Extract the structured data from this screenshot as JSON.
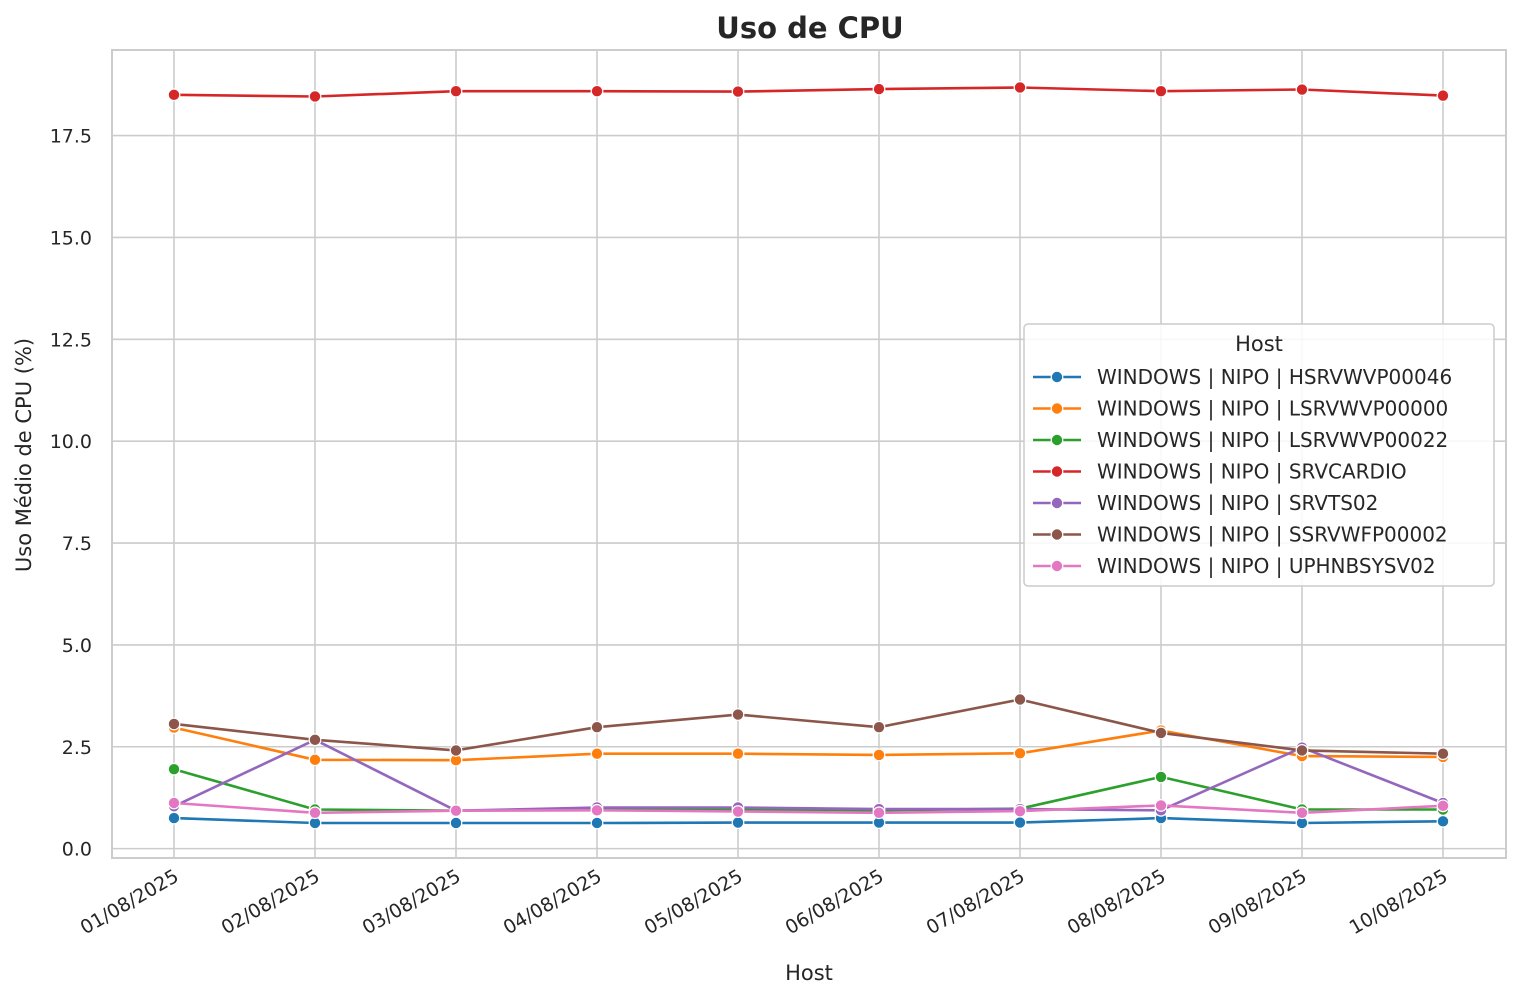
{
  "chart_data": {
    "type": "line",
    "title": "Uso de CPU",
    "xlabel": "Host",
    "ylabel": "Uso Médio de CPU (%)",
    "categories": [
      "01/08/2025",
      "02/08/2025",
      "03/08/2025",
      "04/08/2025",
      "05/08/2025",
      "06/08/2025",
      "07/08/2025",
      "08/08/2025",
      "09/08/2025",
      "10/08/2025"
    ],
    "ylim": [
      -0.23,
      19.6
    ],
    "yticks": [
      0.0,
      2.5,
      5.0,
      7.5,
      10.0,
      12.5,
      15.0,
      17.5
    ],
    "ytick_labels": [
      "0.0",
      "2.5",
      "5.0",
      "7.5",
      "10.0",
      "12.5",
      "15.0",
      "17.5"
    ],
    "grid": true,
    "legend": {
      "title": "Host",
      "placement": "center-right"
    },
    "series": [
      {
        "name": "WINDOWS | NIPO | HSRVWVP00046",
        "color": "#1f77b4",
        "values": [
          0.75,
          0.63,
          0.63,
          0.63,
          0.64,
          0.64,
          0.64,
          0.75,
          0.63,
          0.67
        ]
      },
      {
        "name": "WINDOWS | NIPO | LSRVWVP00000",
        "color": "#ff7f0e",
        "values": [
          2.97,
          2.18,
          2.17,
          2.33,
          2.33,
          2.3,
          2.34,
          2.9,
          2.27,
          2.25
        ]
      },
      {
        "name": "WINDOWS | NIPO | LSRVWVP00022",
        "color": "#2ca02c",
        "values": [
          1.95,
          0.96,
          0.93,
          0.96,
          0.96,
          0.94,
          0.98,
          1.76,
          0.96,
          0.96
        ]
      },
      {
        "name": "WINDOWS | NIPO | SRVCARDIO",
        "color": "#d62728",
        "values": [
          18.5,
          18.46,
          18.59,
          18.59,
          18.58,
          18.64,
          18.68,
          18.59,
          18.63,
          18.48
        ]
      },
      {
        "name": "WINDOWS | NIPO | SRVTS02",
        "color": "#9467bd",
        "values": [
          1.04,
          2.67,
          0.93,
          1.01,
          1.01,
          0.97,
          0.97,
          0.94,
          2.48,
          1.12
        ]
      },
      {
        "name": "WINDOWS | NIPO | SSRVWFP00002",
        "color": "#8c564b",
        "values": [
          3.06,
          2.67,
          2.41,
          2.98,
          3.29,
          2.98,
          3.66,
          2.84,
          2.41,
          2.33
        ]
      },
      {
        "name": "WINDOWS | NIPO | UPHNBSYSV02",
        "color": "#e377c2",
        "values": [
          1.12,
          0.88,
          0.93,
          0.94,
          0.91,
          0.88,
          0.92,
          1.06,
          0.88,
          1.05
        ]
      }
    ]
  }
}
